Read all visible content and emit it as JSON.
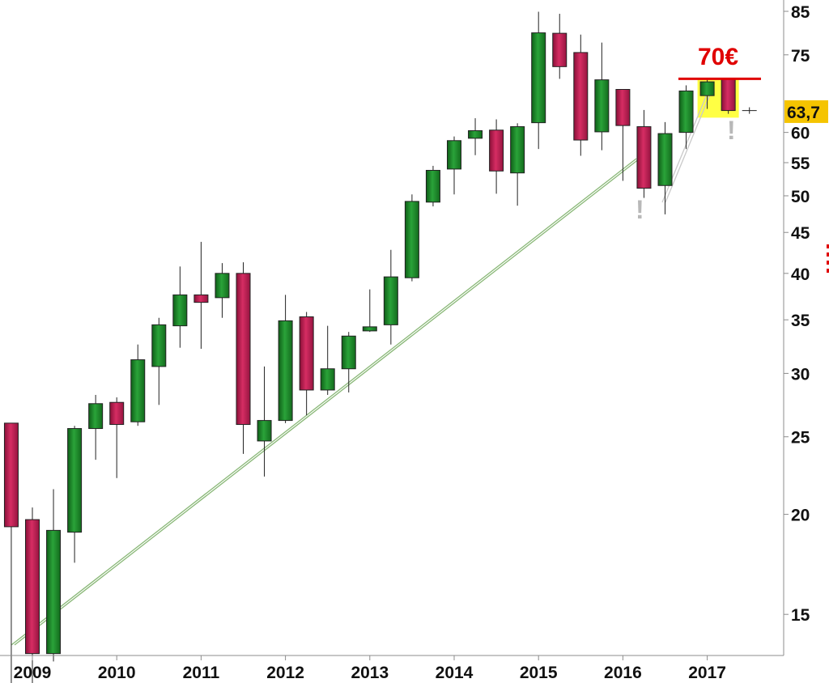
{
  "chart_data": {
    "type": "candlestick",
    "title": "",
    "xlabel": "",
    "ylabel": "",
    "y_scale": "log",
    "ylim": [
      11.6,
      90
    ],
    "grid": false,
    "y_ticks": [
      85,
      75,
      60,
      55,
      50,
      45,
      40,
      35,
      30,
      25,
      20,
      15
    ],
    "x_ticks": [
      "2009",
      "2010",
      "2011",
      "2012",
      "2013",
      "2014",
      "2015",
      "2016",
      "2017"
    ],
    "colors": {
      "up": "#1f8a2a",
      "down": "#c41e56",
      "trendline": "#8ab878",
      "resistance": "#e00000",
      "highlight": "#ffff44",
      "price_tag": "#f5c400"
    },
    "candles": [
      {
        "date": "2008-10",
        "open": 26.0,
        "high": 26.0,
        "low": 12.3,
        "close": 19.3
      },
      {
        "date": "2009-01",
        "open": 19.7,
        "high": 20.4,
        "low": 11.9,
        "close": 13.4
      },
      {
        "date": "2009-04",
        "open": 13.4,
        "high": 21.5,
        "low": 13.1,
        "close": 19.1
      },
      {
        "date": "2009-07",
        "open": 19.0,
        "high": 25.8,
        "low": 17.4,
        "close": 25.6
      },
      {
        "date": "2009-10",
        "open": 25.6,
        "high": 28.2,
        "low": 23.4,
        "close": 27.5
      },
      {
        "date": "2010-01",
        "open": 27.6,
        "high": 28.0,
        "low": 22.2,
        "close": 25.9
      },
      {
        "date": "2010-04",
        "open": 26.1,
        "high": 32.6,
        "low": 25.8,
        "close": 31.2
      },
      {
        "date": "2010-07",
        "open": 30.6,
        "high": 35.2,
        "low": 27.4,
        "close": 34.5
      },
      {
        "date": "2010-10",
        "open": 34.4,
        "high": 40.8,
        "low": 32.3,
        "close": 37.6
      },
      {
        "date": "2011-01",
        "open": 37.6,
        "high": 43.8,
        "low": 32.2,
        "close": 36.8
      },
      {
        "date": "2011-04",
        "open": 37.3,
        "high": 41.2,
        "low": 35.2,
        "close": 40.0
      },
      {
        "date": "2011-07",
        "open": 40.0,
        "high": 41.3,
        "low": 23.8,
        "close": 25.9
      },
      {
        "date": "2011-10",
        "open": 24.7,
        "high": 30.6,
        "low": 22.3,
        "close": 26.2
      },
      {
        "date": "2012-01",
        "open": 26.2,
        "high": 37.6,
        "low": 26.0,
        "close": 34.9
      },
      {
        "date": "2012-04",
        "open": 35.3,
        "high": 35.8,
        "low": 26.6,
        "close": 28.6
      },
      {
        "date": "2012-07",
        "open": 28.6,
        "high": 34.4,
        "low": 28.2,
        "close": 30.4
      },
      {
        "date": "2012-10",
        "open": 30.4,
        "high": 33.8,
        "low": 28.4,
        "close": 33.4
      },
      {
        "date": "2013-01",
        "open": 33.9,
        "high": 38.2,
        "low": 33.8,
        "close": 34.3
      },
      {
        "date": "2013-04",
        "open": 34.5,
        "high": 42.8,
        "low": 32.6,
        "close": 39.6
      },
      {
        "date": "2013-07",
        "open": 39.5,
        "high": 50.2,
        "low": 39.1,
        "close": 49.2
      },
      {
        "date": "2013-10",
        "open": 49.1,
        "high": 54.5,
        "low": 48.5,
        "close": 53.8
      },
      {
        "date": "2014-01",
        "open": 54.0,
        "high": 59.3,
        "low": 50.2,
        "close": 58.6
      },
      {
        "date": "2014-04",
        "open": 59.0,
        "high": 62.5,
        "low": 56.2,
        "close": 60.3
      },
      {
        "date": "2014-07",
        "open": 60.4,
        "high": 62.3,
        "low": 50.3,
        "close": 53.7
      },
      {
        "date": "2014-10",
        "open": 53.4,
        "high": 61.6,
        "low": 48.6,
        "close": 61.0
      },
      {
        "date": "2015-01",
        "open": 61.7,
        "high": 84.9,
        "low": 57.2,
        "close": 79.9
      },
      {
        "date": "2015-04",
        "open": 79.8,
        "high": 84.4,
        "low": 70.0,
        "close": 72.5
      },
      {
        "date": "2015-07",
        "open": 75.5,
        "high": 79.5,
        "low": 56.1,
        "close": 58.7
      },
      {
        "date": "2015-10",
        "open": 60.1,
        "high": 77.7,
        "low": 57.0,
        "close": 69.8
      },
      {
        "date": "2016-01",
        "open": 67.9,
        "high": 67.9,
        "low": 52.2,
        "close": 61.2
      },
      {
        "date": "2016-04",
        "open": 61.0,
        "high": 64.0,
        "low": 49.7,
        "close": 51.1
      },
      {
        "date": "2016-07",
        "open": 51.5,
        "high": 61.8,
        "low": 47.4,
        "close": 59.8
      },
      {
        "date": "2016-10",
        "open": 60.0,
        "high": 68.7,
        "low": 57.2,
        "close": 67.6
      },
      {
        "date": "2017-01",
        "open": 66.7,
        "high": 69.8,
        "low": 64.2,
        "close": 69.4
      },
      {
        "date": "2017-04",
        "open": 69.9,
        "high": 70.0,
        "low": 63.3,
        "close": 63.9
      },
      {
        "date": "2017-07",
        "open": 63.9,
        "high": 64.5,
        "low": 63.3,
        "close": 63.9
      }
    ],
    "resistance_level": 70.0,
    "resistance_label": "70€",
    "last_price_label": "63,7",
    "last_price": 63.7,
    "annotations": [
      {
        "text": "!",
        "near": "2016-04",
        "value": 45.5
      },
      {
        "text": "!",
        "near": "2017-04",
        "value": 57.0
      }
    ]
  }
}
